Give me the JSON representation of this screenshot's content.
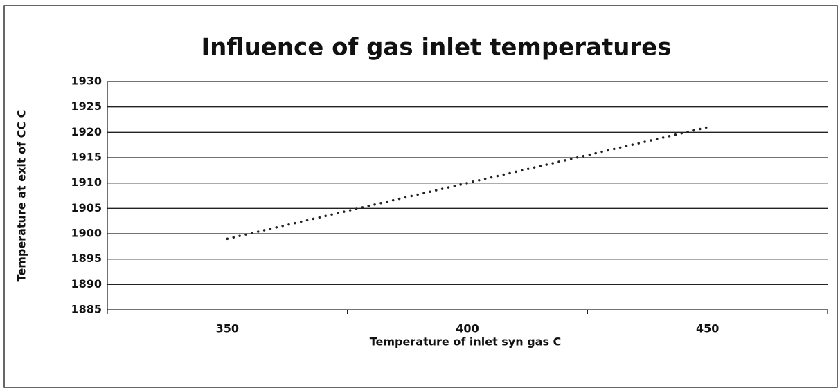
{
  "chart_data": {
    "type": "line",
    "title": "Influence of gas inlet temperatures",
    "x_label": "Temperature of inlet syn gas C",
    "y_label": "Temperature at exit of CC C",
    "categories": [
      "350",
      "400",
      "450"
    ],
    "series": [
      {
        "name": "Temperature at exit of CC C",
        "color": "#222222",
        "values": [
          1899,
          1910,
          1921
        ]
      }
    ],
    "ylim": [
      1885,
      1930
    ],
    "yticks": [
      1885,
      1890,
      1895,
      1900,
      1905,
      1910,
      1915,
      1920,
      1925,
      1930
    ],
    "grid": true,
    "line_style": "dotted"
  }
}
